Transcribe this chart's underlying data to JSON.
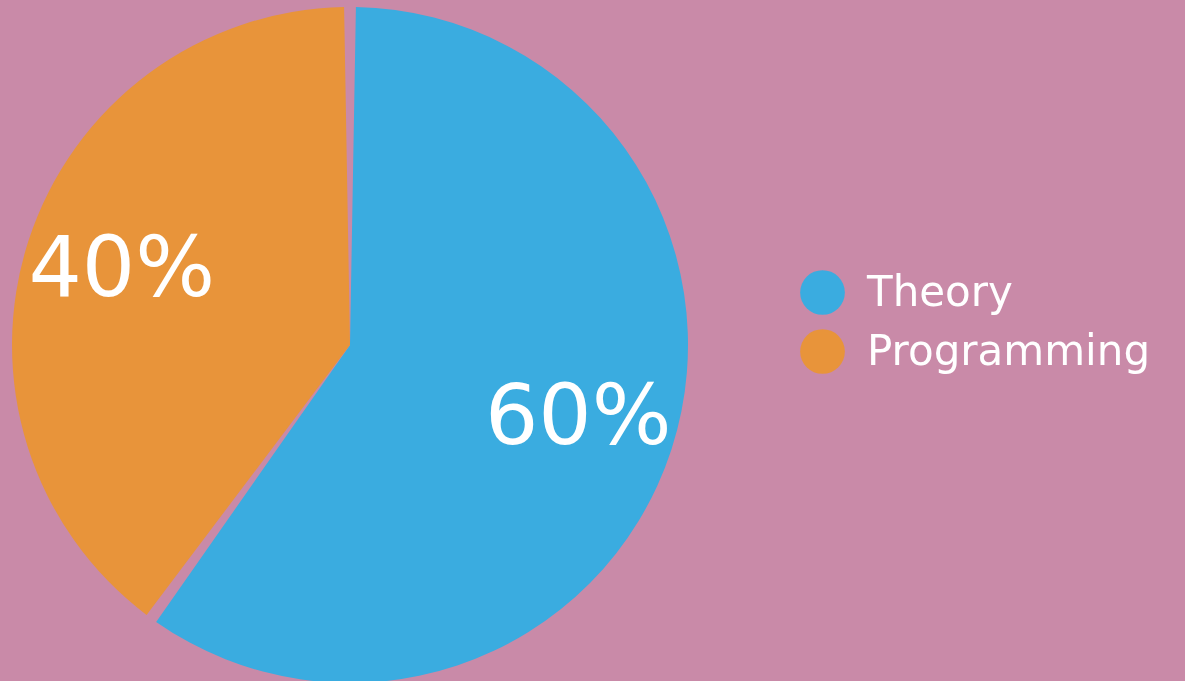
{
  "chart_data": {
    "type": "pie",
    "categories": [
      "Theory",
      "Programming"
    ],
    "values": [
      60,
      40
    ],
    "colors": [
      "#3aace0",
      "#e8943a"
    ],
    "value_labels": [
      "60%",
      "40%"
    ],
    "legend": "right"
  }
}
